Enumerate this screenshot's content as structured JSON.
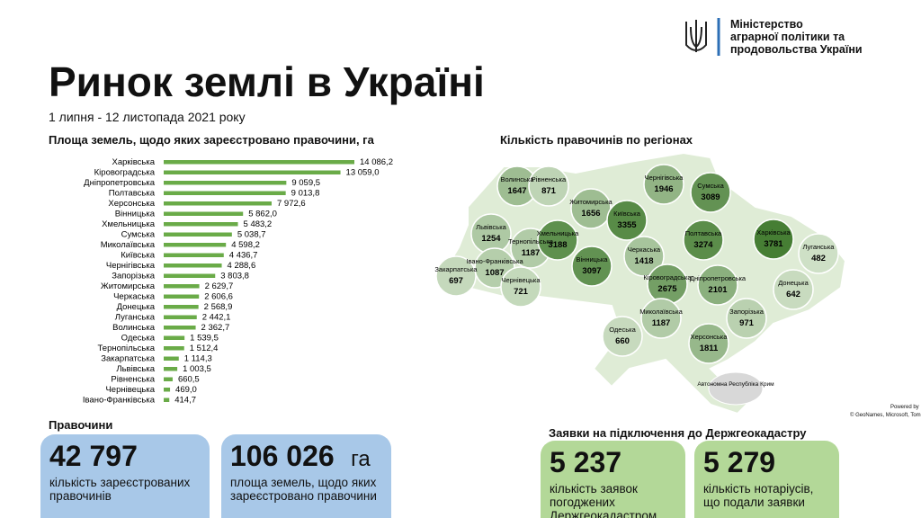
{
  "header": {
    "ministry": [
      "Міністерство",
      "аграрної політики та",
      "продовольства України"
    ],
    "title": "Ринок землі в Україні",
    "subtitle": "1 липня - 12 листопада 2021 року"
  },
  "chart_data": {
    "type": "bar",
    "orientation": "horizontal",
    "title": "Площа земель, щодо яких зареєстровано правочини, га",
    "color": "#6aab48",
    "categories": [
      "Харківська",
      "Кіровоградська",
      "Дніпропетровська",
      "Полтавська",
      "Херсонська",
      "Вінницька",
      "Хмельницька",
      "Сумська",
      "Миколаївська",
      "Київська",
      "Чернігівська",
      "Запорізька",
      "Житомирська",
      "Черкаська",
      "Донецька",
      "Луганська",
      "Волинська",
      "Одеська",
      "Тернопільська",
      "Закарпатська",
      "Львівська",
      "Рівненська",
      "Чернівецька",
      "Івано-Франківська"
    ],
    "values": [
      14086.2,
      13059.0,
      9059.5,
      9013.8,
      7972.6,
      5862.0,
      5483.2,
      5038.7,
      4598.2,
      4436.7,
      4288.6,
      3803.8,
      2629.7,
      2606.6,
      2568.9,
      2442.1,
      2362.7,
      1539.5,
      1512.4,
      1114.3,
      1003.5,
      660.5,
      469.0,
      414.7
    ],
    "value_labels": [
      "14 086,2",
      "13 059,0",
      "9 059,5",
      "9 013,8",
      "7 972,6",
      "5 862,0",
      "5 483,2",
      "5 038,7",
      "4 598,2",
      "4 436,7",
      "4 288,6",
      "3 803,8",
      "2 629,7",
      "2 606,6",
      "2 568,9",
      "2 442,1",
      "2 362,7",
      "1 539,5",
      "1 512,4",
      "1 114,3",
      "1 003,5",
      "660,5",
      "469,0",
      "414,7"
    ]
  },
  "map": {
    "title": "Кількість правочинів по регіонах",
    "regions": [
      {
        "name": "Волинська",
        "value": 1647
      },
      {
        "name": "Рівненська",
        "value": 871
      },
      {
        "name": "Чернігівська",
        "value": 1946
      },
      {
        "name": "Сумська",
        "value": 3089
      },
      {
        "name": "Житомирська",
        "value": 1656
      },
      {
        "name": "Київська",
        "value": 3355
      },
      {
        "name": "Львівська",
        "value": 1254
      },
      {
        "name": "Тернопільська",
        "value": 1187
      },
      {
        "name": "Хмельницька",
        "value": 3188
      },
      {
        "name": "Полтавська",
        "value": 3274
      },
      {
        "name": "Харківська",
        "value": 3781
      },
      {
        "name": "Луганська",
        "value": 482
      },
      {
        "name": "Закарпатська",
        "value": 697
      },
      {
        "name": "Івано-Франківська",
        "value": 1087
      },
      {
        "name": "Чернівецька",
        "value": 721
      },
      {
        "name": "Вінницька",
        "value": 3097
      },
      {
        "name": "Черкаська",
        "value": 1418
      },
      {
        "name": "Кіровоградська",
        "value": 2675
      },
      {
        "name": "Дніпропетровська",
        "value": 2101
      },
      {
        "name": "Донецька",
        "value": 642
      },
      {
        "name": "Миколаївська",
        "value": 1187
      },
      {
        "name": "Запорізька",
        "value": 971
      },
      {
        "name": "Одеська",
        "value": 660
      },
      {
        "name": "Херсонська",
        "value": 1811
      },
      {
        "name": "Автономна Республіка Крим"
      }
    ],
    "attribution": [
      "Powered by",
      "© GeoNames, Microsoft, Tom"
    ]
  },
  "deals": {
    "title": "Правочини",
    "cards": [
      {
        "number": "42 797",
        "text": "кількість зареєстрованих правочинів"
      },
      {
        "number": "106 026",
        "unit": "га",
        "text": "площа земель, щодо яких зареєстровано правочини"
      }
    ]
  },
  "applications": {
    "title": "Заявки на підключення до Держгеокадастру",
    "cards": [
      {
        "number": "5 237",
        "text": "кількість заявок погоджених Держгеокадастром"
      },
      {
        "number": "5 279",
        "text": "кількість нотаріусів, що подали заявки"
      }
    ]
  }
}
